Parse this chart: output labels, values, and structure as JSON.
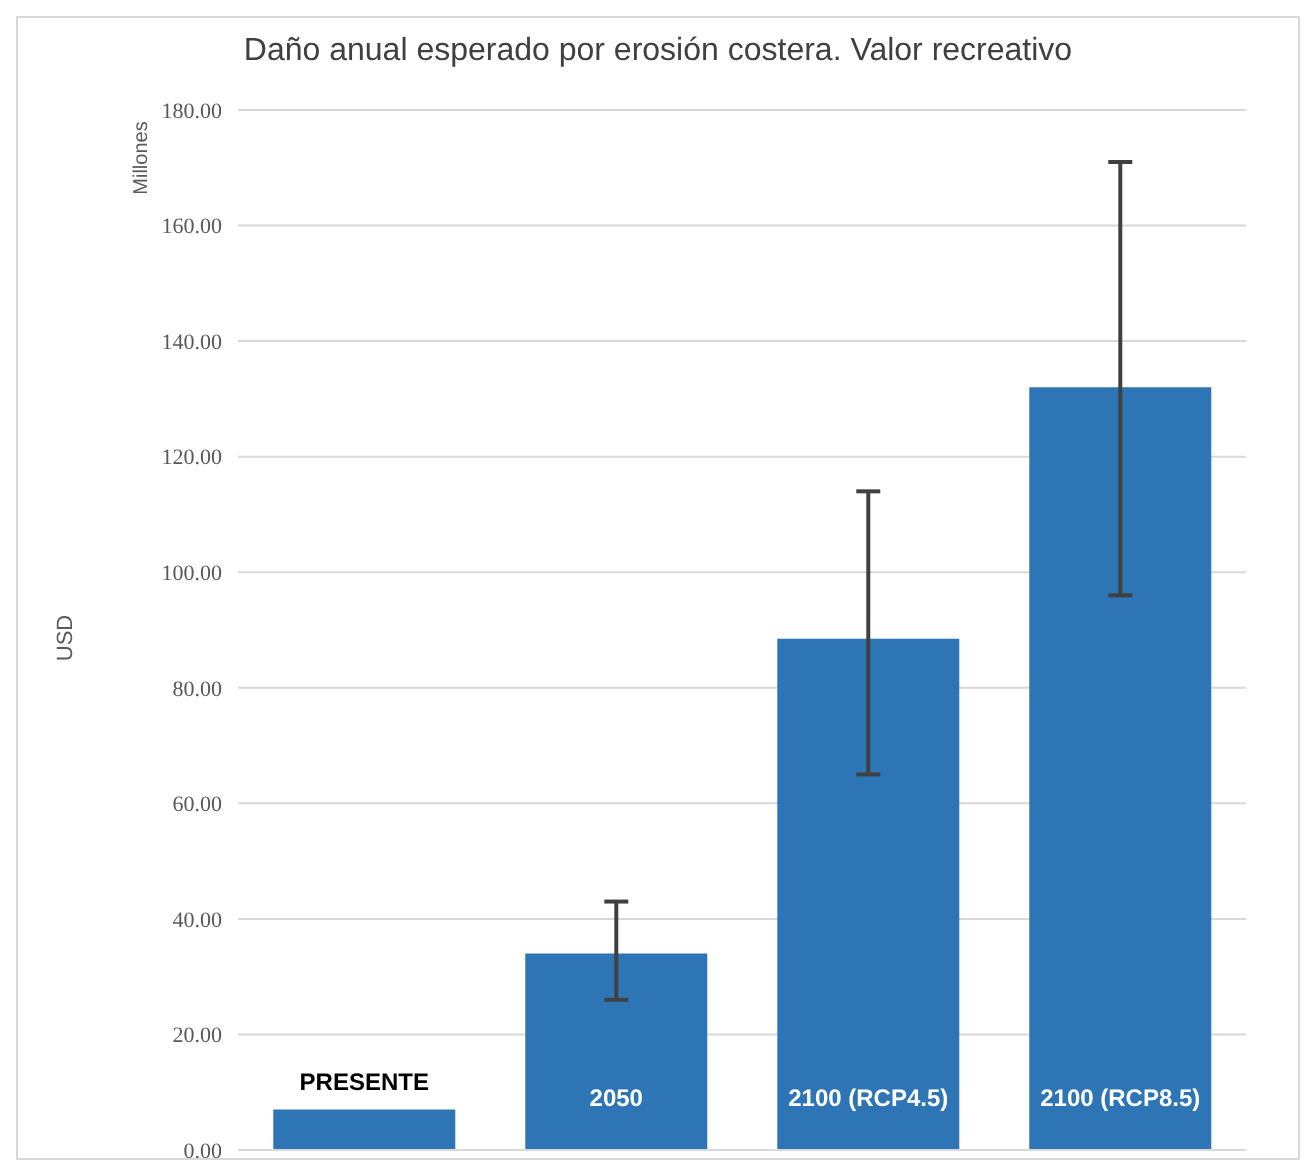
{
  "chart_data": {
    "type": "bar",
    "title": "Daño anual esperado por erosión costera. Valor recreativo",
    "ylabel": "USD",
    "annotations": [
      "Millones"
    ],
    "categories": [
      "PRESENTE",
      "2050",
      "2100 (RCP4.5)",
      "2100 (RCP8.5)"
    ],
    "values": [
      7,
      34,
      88.5,
      132
    ],
    "errors": [
      null,
      [
        26,
        43
      ],
      [
        65,
        114
      ],
      [
        96,
        171
      ]
    ],
    "color": "#2e75b6",
    "ylim": [
      0,
      180
    ],
    "yticks": [
      {
        "value": 0,
        "label": "0.00"
      },
      {
        "value": 20,
        "label": "20.00"
      },
      {
        "value": 40,
        "label": "40.00"
      },
      {
        "value": 60,
        "label": "60.00"
      },
      {
        "value": 80,
        "label": "80.00"
      },
      {
        "value": 100,
        "label": "100.00"
      },
      {
        "value": 120,
        "label": "120.00"
      },
      {
        "value": 140,
        "label": "140.00"
      },
      {
        "value": 160,
        "label": "160.00"
      },
      {
        "value": 180,
        "label": "180.00"
      }
    ],
    "grid": "y"
  }
}
